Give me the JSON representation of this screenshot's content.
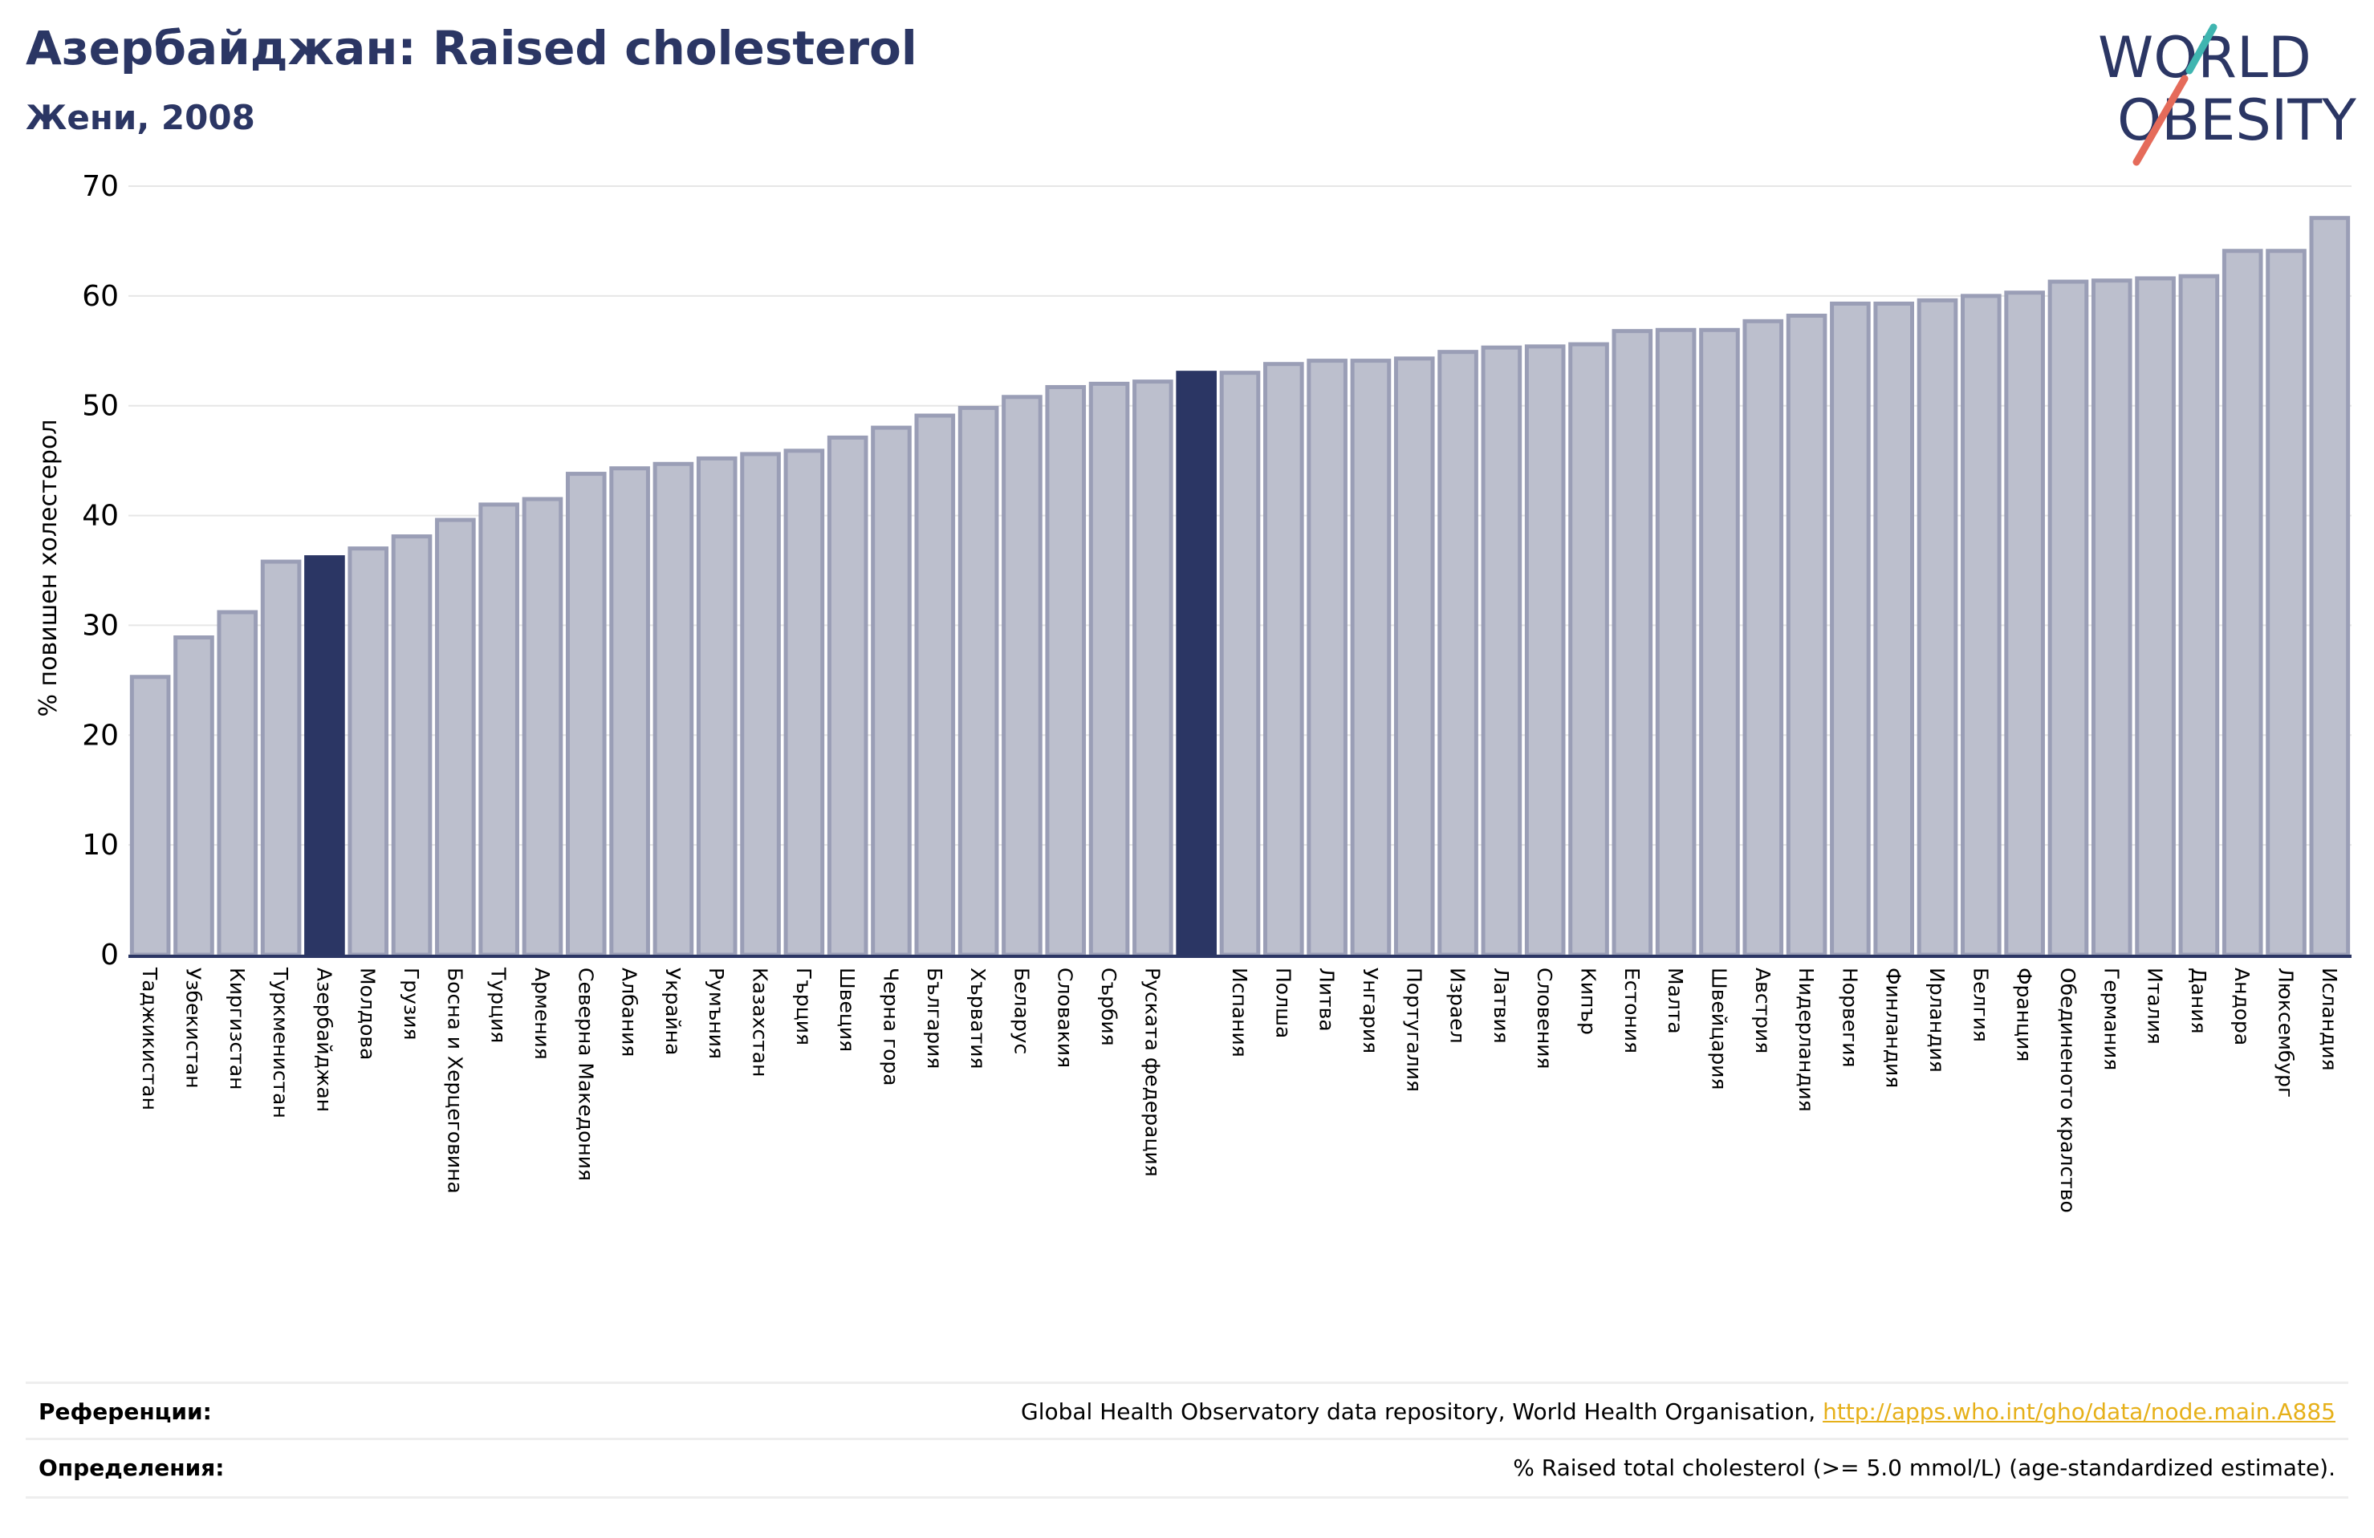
{
  "header": {
    "title": "Азербайджан: Raised cholesterol",
    "subtitle": "Жени, 2008"
  },
  "logo": {
    "line1": "WORLD",
    "line2": "OBESITY"
  },
  "colors": {
    "bar": "#bcbfcd",
    "bar_edge": "#9a9eb6",
    "highlight": "#2b3664",
    "title": "#2b3664",
    "link": "#e6b019"
  },
  "chart_data": {
    "type": "bar",
    "ylabel": "% повишен холестерол",
    "ylim": [
      0,
      70
    ],
    "yticks": [
      0,
      10,
      20,
      30,
      40,
      50,
      60,
      70
    ],
    "grid": true,
    "categories": [
      "Таджикистан",
      "Узбекистан",
      "Киргизстан",
      "Туркменистан",
      "Азербайджан",
      "Молдова",
      "Грузия",
      "Босна и Херцеговина",
      "Турция",
      "Армения",
      "Северна Македония",
      "Албания",
      "Украйна",
      "Румъния",
      "Казахстан",
      "Гърция",
      "Швеция",
      "Черна гора",
      "България",
      "Хърватия",
      "Беларус",
      "Словакия",
      "Сърбия",
      "Руската федерация",
      "",
      "Испания",
      "Полша",
      "Литва",
      "Унгария",
      "Португалия",
      "Израел",
      "Латвия",
      "Словения",
      "Кипър",
      "Естония",
      "Малта",
      "Швейцария",
      "Австрия",
      "Нидерландия",
      "Норвегия",
      "Финландия",
      "Ирландия",
      "Белгия",
      "Франция",
      "Обединеното кралство",
      "Германия",
      "Италия",
      "Дания",
      "Андора",
      "Люксембург",
      "Исландия"
    ],
    "values": [
      25.3,
      28.9,
      31.2,
      35.8,
      36.2,
      37.0,
      38.1,
      39.6,
      41.0,
      41.5,
      43.8,
      44.3,
      44.7,
      45.2,
      45.6,
      45.9,
      47.1,
      48.0,
      49.1,
      49.8,
      50.8,
      51.7,
      52.0,
      52.2,
      53.0,
      53.0,
      53.8,
      54.1,
      54.1,
      54.3,
      54.9,
      55.3,
      55.4,
      55.6,
      56.8,
      56.9,
      56.9,
      57.7,
      58.2,
      59.3,
      59.3,
      59.6,
      60.0,
      60.3,
      61.3,
      61.4,
      61.6,
      61.8,
      64.1,
      64.1,
      67.1
    ],
    "highlight_indices": [
      4,
      24
    ]
  },
  "footer": {
    "references_label": "Референции:",
    "references_text": "Global Health Observatory data repository, World Health Organisation, ",
    "references_link": "http://apps.who.int/gho/data/node.main.A885",
    "definitions_label": "Определения:",
    "definitions_text": "% Raised total cholesterol (>= 5.0 mmol/L) (age-standardized estimate)."
  }
}
